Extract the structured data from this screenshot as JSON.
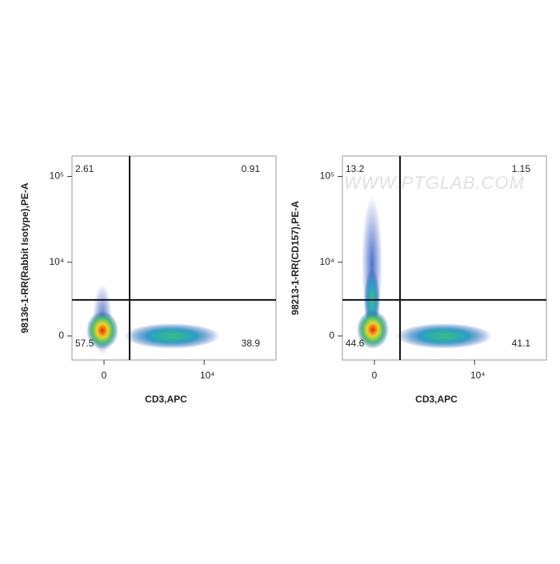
{
  "chart_data": [
    {
      "type": "flow",
      "x_label": "CD3,APC",
      "y_label": "98136-1-RR(Rabbit Isotype),PE-A",
      "xlim": [
        -1920,
        41600
      ],
      "ylim": [
        -1960,
        172000
      ],
      "xticks": [
        0,
        {
          "value": 10000,
          "label": "10⁴"
        }
      ],
      "yticks": [
        0,
        {
          "value": 10000,
          "label": "10⁴"
        },
        {
          "value": 100000,
          "label": "10⁵"
        }
      ],
      "gate_x": 1500,
      "gate_y": 3200,
      "quadrants": {
        "top_left": 2.61,
        "top_right": 0.91,
        "bottom_left": 57.5,
        "bottom_right": 38.9
      }
    },
    {
      "type": "flow",
      "x_label": "CD3,APC",
      "y_label": "98213-1-RR(CD157),PE-A",
      "xlim": [
        -1920,
        41600
      ],
      "ylim": [
        -1960,
        172000
      ],
      "xticks": [
        0,
        {
          "value": 10000,
          "label": "10⁴"
        }
      ],
      "yticks": [
        0,
        {
          "value": 10000,
          "label": "10⁴"
        },
        {
          "value": 100000,
          "label": "10⁵"
        }
      ],
      "gate_x": 1500,
      "gate_y": 3200,
      "quadrants": {
        "top_left": 13.2,
        "top_right": 1.15,
        "bottom_left": 44.6,
        "bottom_right": 41.1
      },
      "watermark": "WWW.PTGLAB.COM"
    }
  ]
}
